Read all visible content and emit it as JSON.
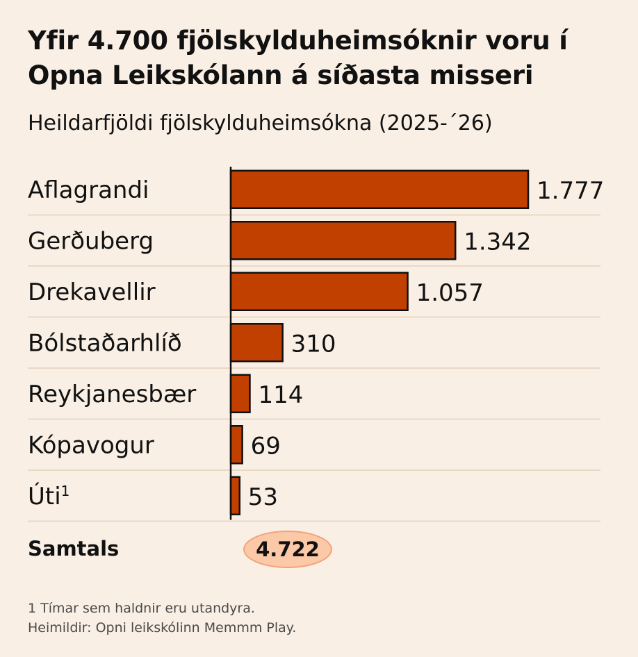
{
  "chart_data": {
    "type": "bar",
    "orientation": "horizontal",
    "title": "Yfir 4.700 fjölskylduheimsóknir voru í Opna Leikskólann á síðasta misseri",
    "subtitle": "Heildarfjöldi fjölskylduheimsókna (2025-´26)",
    "categories": [
      "Aflagrandi",
      "Gerðuberg",
      "Drekavellir",
      "Bólstaðarhlíð",
      "Reykjanesbær",
      "Kópavogur",
      "Úti"
    ],
    "footnote_marks": [
      "",
      "",
      "",
      "",
      "",
      "",
      "1"
    ],
    "values": [
      1777,
      1342,
      1057,
      310,
      114,
      69,
      53
    ],
    "value_labels": [
      "1.777",
      "1.342",
      "1.057",
      "310",
      "114",
      "69",
      "53"
    ],
    "xlim": [
      0,
      1777
    ],
    "bar_color": "#c14000",
    "bar_edge_color": "#111111",
    "grid": "horizontal separators"
  },
  "total": {
    "label": "Samtals",
    "value": "4.722",
    "pill_color": "#fbc8a8"
  },
  "footnotes": [
    "1 Tímar sem haldnir eru utandyra.",
    "Heimildir: Opni leikskólinn Memmm Play."
  ]
}
